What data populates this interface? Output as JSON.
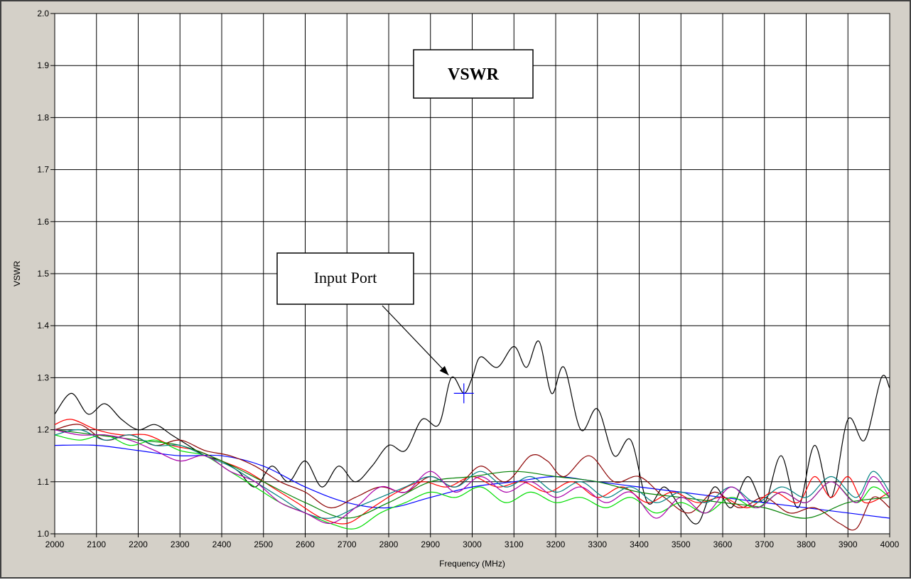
{
  "chart_data": {
    "type": "line",
    "title": "VSWR",
    "xlabel": "Frequency (MHz)",
    "ylabel": "VSWR",
    "xlim": [
      2000,
      4000
    ],
    "ylim": [
      1.0,
      2.0
    ],
    "x_ticks": [
      "2000",
      "2100",
      "2200",
      "2300",
      "2400",
      "2500",
      "2600",
      "2700",
      "2800",
      "2900",
      "3000",
      "3100",
      "3200",
      "3300",
      "3400",
      "3500",
      "3600",
      "3700",
      "3800",
      "3900",
      "4000"
    ],
    "y_ticks": [
      "1.0",
      "1.1",
      "1.2",
      "1.3",
      "1.4",
      "1.5",
      "1.6",
      "1.7",
      "1.8",
      "1.9",
      "2.0"
    ],
    "grid": true,
    "annotations": [
      {
        "text": "Input Port",
        "arrow_to": {
          "x": 2940,
          "y": 1.305
        }
      }
    ],
    "cursor": {
      "x": 2980,
      "y": 1.27
    },
    "series": [
      {
        "color": "#000000",
        "x": [
          2000,
          2040,
          2080,
          2120,
          2160,
          2200,
          2240,
          2280,
          2320,
          2360,
          2400,
          2440,
          2480,
          2520,
          2560,
          2600,
          2640,
          2680,
          2720,
          2760,
          2800,
          2840,
          2880,
          2920,
          2950,
          2980,
          3000,
          3020,
          3060,
          3100,
          3130,
          3160,
          3190,
          3220,
          3260,
          3300,
          3340,
          3380,
          3420,
          3460,
          3500,
          3540,
          3580,
          3620,
          3660,
          3700,
          3740,
          3780,
          3820,
          3860,
          3900,
          3940,
          3980,
          4000
        ],
        "y": [
          1.23,
          1.27,
          1.23,
          1.25,
          1.22,
          1.2,
          1.21,
          1.19,
          1.17,
          1.15,
          1.14,
          1.12,
          1.09,
          1.13,
          1.1,
          1.14,
          1.09,
          1.13,
          1.1,
          1.13,
          1.17,
          1.16,
          1.22,
          1.21,
          1.3,
          1.27,
          1.3,
          1.34,
          1.32,
          1.36,
          1.32,
          1.37,
          1.27,
          1.32,
          1.2,
          1.24,
          1.15,
          1.18,
          1.06,
          1.09,
          1.05,
          1.02,
          1.09,
          1.05,
          1.11,
          1.06,
          1.15,
          1.05,
          1.17,
          1.07,
          1.22,
          1.18,
          1.3,
          1.28
        ]
      },
      {
        "color": "#0000ff",
        "x": [
          2000,
          2100,
          2200,
          2300,
          2400,
          2500,
          2600,
          2700,
          2800,
          2900,
          3000,
          3100,
          3200,
          3300,
          3400,
          3500,
          3600,
          3700,
          3800,
          3900,
          4000
        ],
        "y": [
          1.17,
          1.17,
          1.16,
          1.15,
          1.15,
          1.13,
          1.09,
          1.06,
          1.05,
          1.07,
          1.09,
          1.1,
          1.11,
          1.1,
          1.09,
          1.08,
          1.07,
          1.06,
          1.05,
          1.04,
          1.03
        ]
      },
      {
        "color": "#8b0000",
        "x": [
          2000,
          2060,
          2120,
          2180,
          2240,
          2300,
          2360,
          2420,
          2480,
          2540,
          2600,
          2660,
          2720,
          2780,
          2840,
          2900,
          2960,
          3020,
          3080,
          3140,
          3180,
          3220,
          3280,
          3340,
          3400,
          3460,
          3520,
          3580,
          3640,
          3700,
          3760,
          3820,
          3880,
          3920,
          3960,
          4000
        ],
        "y": [
          1.2,
          1.21,
          1.18,
          1.19,
          1.17,
          1.18,
          1.16,
          1.15,
          1.13,
          1.1,
          1.08,
          1.05,
          1.07,
          1.09,
          1.08,
          1.11,
          1.09,
          1.13,
          1.1,
          1.15,
          1.14,
          1.11,
          1.15,
          1.1,
          1.11,
          1.07,
          1.04,
          1.08,
          1.05,
          1.07,
          1.04,
          1.05,
          1.02,
          1.01,
          1.07,
          1.05
        ]
      },
      {
        "color": "#ff0000",
        "x": [
          2000,
          2040,
          2100,
          2160,
          2220,
          2280,
          2340,
          2400,
          2460,
          2520,
          2580,
          2640,
          2700,
          2760,
          2820,
          2880,
          2940,
          3000,
          3060,
          3120,
          3180,
          3240,
          3300,
          3360,
          3420,
          3480,
          3540,
          3600,
          3660,
          3720,
          3780,
          3820,
          3860,
          3900,
          3940,
          4000
        ],
        "y": [
          1.21,
          1.22,
          1.2,
          1.19,
          1.19,
          1.17,
          1.16,
          1.14,
          1.12,
          1.09,
          1.06,
          1.03,
          1.02,
          1.05,
          1.08,
          1.1,
          1.09,
          1.11,
          1.09,
          1.1,
          1.08,
          1.1,
          1.07,
          1.09,
          1.06,
          1.08,
          1.06,
          1.07,
          1.05,
          1.08,
          1.06,
          1.11,
          1.07,
          1.11,
          1.06,
          1.08
        ]
      },
      {
        "color": "#008000",
        "x": [
          2000,
          2100,
          2200,
          2300,
          2400,
          2500,
          2600,
          2700,
          2800,
          2900,
          3000,
          3100,
          3200,
          3300,
          3400,
          3500,
          3600,
          3700,
          3800,
          3900,
          4000
        ],
        "y": [
          1.2,
          1.19,
          1.18,
          1.17,
          1.14,
          1.1,
          1.06,
          1.03,
          1.06,
          1.1,
          1.11,
          1.12,
          1.11,
          1.1,
          1.08,
          1.07,
          1.06,
          1.05,
          1.03,
          1.06,
          1.07
        ]
      },
      {
        "color": "#00dd00",
        "x": [
          2000,
          2060,
          2120,
          2180,
          2240,
          2300,
          2360,
          2420,
          2480,
          2540,
          2600,
          2660,
          2720,
          2780,
          2840,
          2900,
          2960,
          3020,
          3080,
          3140,
          3200,
          3260,
          3320,
          3380,
          3440,
          3500,
          3560,
          3620,
          3680,
          3740,
          3800,
          3860,
          3920,
          3960,
          4000
        ],
        "y": [
          1.19,
          1.18,
          1.19,
          1.17,
          1.18,
          1.16,
          1.15,
          1.12,
          1.09,
          1.06,
          1.04,
          1.02,
          1.01,
          1.04,
          1.06,
          1.08,
          1.07,
          1.09,
          1.06,
          1.08,
          1.06,
          1.07,
          1.05,
          1.07,
          1.04,
          1.06,
          1.04,
          1.07,
          1.05,
          1.08,
          1.06,
          1.1,
          1.06,
          1.09,
          1.07
        ]
      },
      {
        "color": "#008080",
        "x": [
          2000,
          2060,
          2120,
          2180,
          2240,
          2300,
          2360,
          2420,
          2480,
          2540,
          2600,
          2660,
          2720,
          2780,
          2840,
          2900,
          2960,
          3020,
          3080,
          3140,
          3200,
          3260,
          3320,
          3380,
          3440,
          3500,
          3560,
          3620,
          3680,
          3740,
          3800,
          3860,
          3920,
          3960,
          4000
        ],
        "y": [
          1.19,
          1.2,
          1.18,
          1.19,
          1.17,
          1.17,
          1.15,
          1.13,
          1.1,
          1.07,
          1.04,
          1.03,
          1.05,
          1.07,
          1.09,
          1.11,
          1.09,
          1.12,
          1.09,
          1.11,
          1.08,
          1.1,
          1.07,
          1.09,
          1.06,
          1.08,
          1.06,
          1.09,
          1.06,
          1.09,
          1.07,
          1.11,
          1.07,
          1.12,
          1.08
        ]
      },
      {
        "color": "#aa00aa",
        "x": [
          2000,
          2060,
          2120,
          2180,
          2240,
          2300,
          2360,
          2420,
          2480,
          2540,
          2600,
          2660,
          2720,
          2780,
          2840,
          2900,
          2960,
          3020,
          3080,
          3140,
          3200,
          3260,
          3320,
          3380,
          3440,
          3500,
          3560,
          3620,
          3680,
          3740,
          3800,
          3860,
          3920,
          3960,
          4000
        ],
        "y": [
          1.2,
          1.19,
          1.19,
          1.18,
          1.16,
          1.14,
          1.15,
          1.12,
          1.1,
          1.06,
          1.04,
          1.02,
          1.05,
          1.09,
          1.08,
          1.12,
          1.08,
          1.11,
          1.08,
          1.1,
          1.07,
          1.09,
          1.06,
          1.08,
          1.03,
          1.07,
          1.04,
          1.09,
          1.05,
          1.08,
          1.06,
          1.1,
          1.06,
          1.11,
          1.07
        ]
      }
    ]
  }
}
